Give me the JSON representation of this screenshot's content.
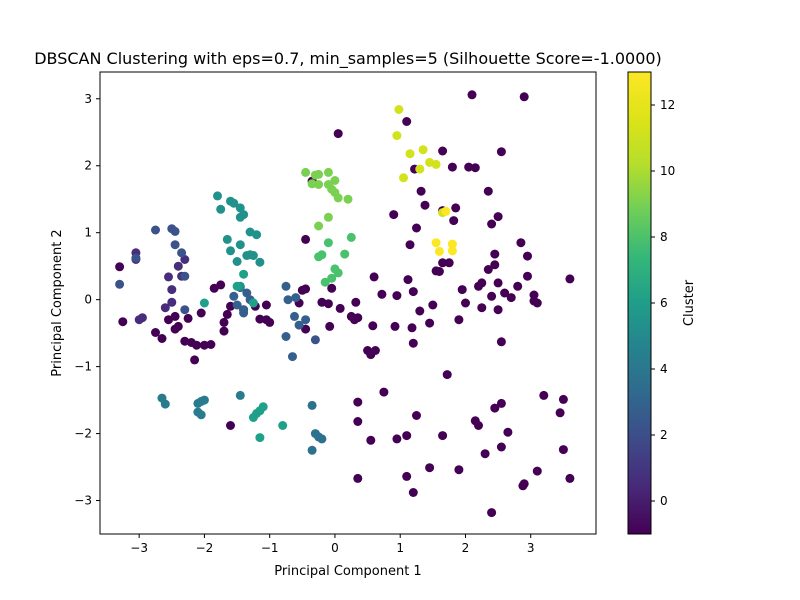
{
  "chart_data": {
    "type": "scatter",
    "title": "DBSCAN Clustering with eps=0.7, min_samples=5 (Silhouette Score=-1.0000)",
    "xlabel": "Principal Component 1",
    "ylabel": "Principal Component 2",
    "xlim": [
      -3.6,
      4.0
    ],
    "ylim": [
      -3.5,
      3.4
    ],
    "xticks": [
      -3,
      -2,
      -1,
      0,
      1,
      2,
      3
    ],
    "yticks": [
      -3,
      -2,
      -1,
      0,
      1,
      2,
      3
    ],
    "grid": false,
    "colorbar": {
      "label": "Cluster",
      "colormap": "viridis",
      "range": [
        -1,
        13
      ],
      "ticks": [
        0,
        2,
        4,
        6,
        8,
        10,
        12
      ]
    },
    "series": [
      {
        "cluster": -1,
        "color": "#440154",
        "points": [
          [
            -3.3,
            0.49
          ],
          [
            -3.25,
            -0.33
          ],
          [
            -2.75,
            -0.49
          ],
          [
            -2.65,
            -0.58
          ],
          [
            -2.55,
            -0.3
          ],
          [
            -2.45,
            -0.25
          ],
          [
            -2.45,
            -0.44
          ],
          [
            -2.4,
            -0.4
          ],
          [
            -2.3,
            -0.62
          ],
          [
            -2.25,
            -0.28
          ],
          [
            -2.2,
            -0.64
          ],
          [
            -2.15,
            -0.9
          ],
          [
            -2.12,
            -0.68
          ],
          [
            -2.05,
            -0.2
          ],
          [
            -2.0,
            -0.68
          ],
          [
            -1.9,
            -0.67
          ],
          [
            -1.85,
            0.17
          ],
          [
            -1.75,
            0.22
          ],
          [
            -1.7,
            -0.47
          ],
          [
            -1.7,
            -0.34
          ],
          [
            -1.65,
            -0.22
          ],
          [
            -1.6,
            -1.88
          ],
          [
            -1.22,
            -0.1
          ],
          [
            -1.15,
            -0.29
          ],
          [
            -1.05,
            -0.3
          ],
          [
            -1.05,
            -0.08
          ],
          [
            -1.0,
            -0.34
          ],
          [
            -0.55,
            -0.05
          ],
          [
            -0.5,
            0.14
          ],
          [
            -0.45,
            -0.44
          ],
          [
            -0.45,
            0.16
          ],
          [
            -0.45,
            0.9
          ],
          [
            -0.2,
            -0.04
          ],
          [
            -0.1,
            -0.06
          ],
          [
            -0.08,
            -0.4
          ],
          [
            -0.05,
            0.17
          ],
          [
            0.05,
            2.48
          ],
          [
            0.08,
            -0.13
          ],
          [
            0.25,
            -0.25
          ],
          [
            0.3,
            -0.3
          ],
          [
            0.32,
            -0.04
          ],
          [
            0.35,
            -0.27
          ],
          [
            0.35,
            -2.67
          ],
          [
            0.5,
            -0.76
          ],
          [
            0.55,
            -0.82
          ],
          [
            0.58,
            -0.39
          ],
          [
            0.6,
            0.34
          ],
          [
            0.62,
            -0.76
          ],
          [
            0.72,
            0.08
          ],
          [
            0.75,
            -1.38
          ],
          [
            0.9,
            1.27
          ],
          [
            0.92,
            -0.4
          ],
          [
            0.95,
            0.06
          ],
          [
            1.1,
            2.66
          ],
          [
            1.12,
            0.3
          ],
          [
            1.15,
            0.82
          ],
          [
            1.18,
            -0.42
          ],
          [
            1.2,
            0.12
          ],
          [
            1.22,
            1.95
          ],
          [
            1.25,
            1.07
          ],
          [
            1.3,
            -0.17
          ],
          [
            1.32,
            1.62
          ],
          [
            1.38,
            1.41
          ],
          [
            1.45,
            -0.35
          ],
          [
            1.5,
            -0.08
          ],
          [
            1.55,
            0.43
          ],
          [
            1.6,
            0.42
          ],
          [
            1.65,
            0.55
          ],
          [
            1.65,
            1.33
          ],
          [
            1.65,
            2.22
          ],
          [
            1.72,
            -1.12
          ],
          [
            1.75,
            0.55
          ],
          [
            1.8,
            1.98
          ],
          [
            1.82,
            1.18
          ],
          [
            1.85,
            1.37
          ],
          [
            1.9,
            -0.3
          ],
          [
            1.95,
            0.15
          ],
          [
            2.0,
            -0.05
          ],
          [
            2.05,
            1.98
          ],
          [
            2.1,
            3.06
          ],
          [
            2.15,
            1.97
          ],
          [
            2.2,
            0.2
          ],
          [
            2.25,
            -0.12
          ],
          [
            2.25,
            0.25
          ],
          [
            2.35,
            0.45
          ],
          [
            2.35,
            1.62
          ],
          [
            2.4,
            0.05
          ],
          [
            2.4,
            1.13
          ],
          [
            2.45,
            0.68
          ],
          [
            2.45,
            0.52
          ],
          [
            2.5,
            0.25
          ],
          [
            2.5,
            1.24
          ],
          [
            2.5,
            -0.15
          ],
          [
            2.55,
            2.21
          ],
          [
            2.55,
            -0.63
          ],
          [
            2.6,
            0.1
          ],
          [
            2.7,
            0.03
          ],
          [
            2.8,
            0.2
          ],
          [
            2.85,
            0.85
          ],
          [
            2.9,
            3.03
          ],
          [
            2.95,
            0.65
          ],
          [
            2.95,
            0.35
          ],
          [
            3.05,
            0.07
          ],
          [
            3.05,
            -0.02
          ],
          [
            3.1,
            -0.05
          ],
          [
            3.6,
            0.31
          ],
          [
            -1.6,
            -0.1
          ],
          [
            -1.4,
            -0.15
          ],
          [
            -0.35,
            1.77
          ],
          [
            2.9,
            -2.75
          ],
          [
            2.88,
            -2.78
          ],
          [
            3.1,
            -2.56
          ],
          [
            3.2,
            -1.43
          ],
          [
            3.45,
            -1.69
          ],
          [
            3.5,
            -1.49
          ],
          [
            3.5,
            -2.24
          ],
          [
            3.6,
            -2.67
          ],
          [
            2.45,
            -1.62
          ],
          [
            2.55,
            -1.55
          ],
          [
            2.65,
            -1.98
          ],
          [
            2.55,
            -2.2
          ],
          [
            2.4,
            -3.18
          ],
          [
            2.3,
            -2.3
          ],
          [
            2.15,
            -1.81
          ],
          [
            2.2,
            -1.88
          ],
          [
            1.9,
            -2.54
          ],
          [
            1.65,
            -2.03
          ],
          [
            1.45,
            -2.51
          ],
          [
            1.25,
            -1.73
          ],
          [
            1.2,
            -2.88
          ],
          [
            1.1,
            -2.64
          ],
          [
            1.1,
            -2.03
          ],
          [
            0.95,
            -2.08
          ],
          [
            0.55,
            -2.1
          ],
          [
            0.35,
            -1.53
          ],
          [
            0.35,
            -1.82
          ],
          [
            1.2,
            -0.65
          ]
        ]
      },
      {
        "cluster": 1,
        "color": "#472d7b",
        "points": [
          [
            -3.05,
            0.7
          ],
          [
            -3.05,
            0.6
          ],
          [
            -3.0,
            -0.3
          ],
          [
            -2.95,
            -0.27
          ],
          [
            -2.6,
            -0.12
          ],
          [
            -2.55,
            0.34
          ],
          [
            -2.5,
            -0.04
          ],
          [
            -2.5,
            0.15
          ],
          [
            -2.4,
            0.5
          ],
          [
            -2.35,
            0.35
          ],
          [
            -2.3,
            0.6
          ]
        ]
      },
      {
        "cluster": 2,
        "color": "#3b528b",
        "points": [
          [
            -3.3,
            0.23
          ],
          [
            -3.05,
            0.62
          ],
          [
            -2.75,
            1.04
          ],
          [
            -2.5,
            1.06
          ],
          [
            -2.45,
            1.02
          ],
          [
            -2.35,
            0.7
          ],
          [
            -2.3,
            0.35
          ],
          [
            -2.3,
            -0.15
          ],
          [
            -0.3,
            -0.6
          ],
          [
            -2.45,
            0.82
          ]
        ]
      },
      {
        "cluster": 3,
        "color": "#355f8d",
        "points": [
          [
            -1.55,
            0.05
          ],
          [
            -1.5,
            -0.08
          ],
          [
            -1.45,
            0.18
          ],
          [
            -1.4,
            -0.2
          ],
          [
            -1.4,
            -0.15
          ],
          [
            -1.35,
            0.1
          ],
          [
            -1.3,
            0.0
          ],
          [
            -0.75,
            0.2
          ],
          [
            -0.72,
            0.0
          ],
          [
            -0.65,
            -0.85
          ],
          [
            -0.62,
            -0.25
          ],
          [
            -0.6,
            0.03
          ],
          [
            -0.55,
            -0.38
          ],
          [
            -0.45,
            -0.3
          ],
          [
            -0.75,
            -0.55
          ]
        ]
      },
      {
        "cluster": 4,
        "color": "#2c728e",
        "points": [
          [
            -0.35,
            -1.58
          ],
          [
            -0.3,
            -2.0
          ],
          [
            -0.25,
            -2.05
          ],
          [
            -0.2,
            -2.08
          ],
          [
            -0.35,
            -2.25
          ]
        ]
      },
      {
        "cluster": 5,
        "color": "#287c8e",
        "points": [
          [
            -2.65,
            -1.47
          ],
          [
            -2.6,
            -1.56
          ],
          [
            -2.0,
            -1.5
          ],
          [
            -2.05,
            -1.52
          ],
          [
            -2.1,
            -1.55
          ],
          [
            -2.1,
            -1.68
          ],
          [
            -2.05,
            -1.72
          ],
          [
            -1.45,
            -1.43
          ]
        ]
      },
      {
        "cluster": 6,
        "color": "#21918c",
        "points": [
          [
            -1.8,
            1.55
          ],
          [
            -1.75,
            1.35
          ],
          [
            -1.6,
            1.47
          ],
          [
            -1.55,
            1.44
          ],
          [
            -1.45,
            1.23
          ],
          [
            -1.45,
            1.37
          ],
          [
            -1.4,
            1.27
          ],
          [
            -1.65,
            0.9
          ],
          [
            -1.6,
            0.73
          ],
          [
            -1.45,
            0.82
          ],
          [
            -1.5,
            0.57
          ],
          [
            -1.35,
            0.66
          ],
          [
            -1.3,
            0.67
          ],
          [
            -1.2,
            0.97
          ],
          [
            -1.3,
            1.01
          ],
          [
            -1.15,
            0.56
          ],
          [
            -1.45,
            0.2
          ],
          [
            -1.25,
            0.66
          ]
        ]
      },
      {
        "cluster": 7,
        "color": "#1fa088",
        "points": [
          [
            -1.25,
            -1.76
          ],
          [
            -1.2,
            -1.7
          ],
          [
            -1.15,
            -1.66
          ],
          [
            -1.1,
            -1.6
          ],
          [
            -1.15,
            -2.06
          ],
          [
            -0.8,
            -1.88
          ],
          [
            -1.4,
            0.38
          ],
          [
            -1.5,
            0.2
          ],
          [
            -2.0,
            -0.05
          ],
          [
            -1.25,
            -0.05
          ]
        ]
      },
      {
        "cluster": 9,
        "color": "#4ac16d",
        "points": [
          [
            -0.15,
            0.26
          ],
          [
            -0.25,
            0.64
          ],
          [
            -0.2,
            0.67
          ],
          [
            -0.1,
            0.85
          ],
          [
            0.0,
            0.46
          ],
          [
            0.05,
            0.4
          ],
          [
            -0.05,
            0.32
          ],
          [
            0.15,
            0.68
          ],
          [
            0.25,
            0.93
          ]
        ]
      },
      {
        "cluster": 10,
        "color": "#7ad151",
        "points": [
          [
            -0.45,
            1.9
          ],
          [
            -0.35,
            1.73
          ],
          [
            -0.3,
            1.86
          ],
          [
            -0.25,
            1.87
          ],
          [
            -0.25,
            1.72
          ],
          [
            -0.1,
            1.72
          ],
          [
            -0.05,
            1.65
          ],
          [
            0.0,
            1.6
          ],
          [
            0.05,
            1.52
          ],
          [
            0.2,
            1.5
          ],
          [
            -0.1,
            1.9
          ],
          [
            -0.25,
            1.1
          ],
          [
            -0.1,
            1.23
          ],
          [
            0.0,
            1.78
          ]
        ]
      },
      {
        "cluster": 12,
        "color": "#d2e21b",
        "points": [
          [
            0.98,
            2.84
          ],
          [
            0.95,
            2.45
          ],
          [
            1.05,
            1.82
          ],
          [
            1.15,
            2.18
          ],
          [
            1.3,
            1.95
          ],
          [
            1.35,
            2.24
          ],
          [
            1.45,
            2.05
          ],
          [
            1.55,
            2.02
          ],
          [
            1.65,
            1.3
          ]
        ]
      },
      {
        "cluster": 13,
        "color": "#fde725",
        "points": [
          [
            1.55,
            0.85
          ],
          [
            1.6,
            0.72
          ],
          [
            1.8,
            0.83
          ],
          [
            1.8,
            0.73
          ],
          [
            1.7,
            1.32
          ]
        ]
      }
    ]
  }
}
